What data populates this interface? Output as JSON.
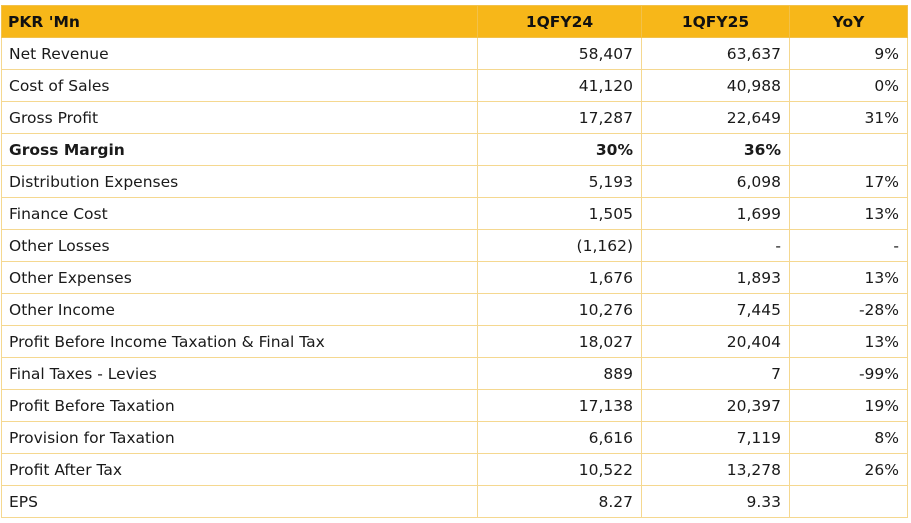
{
  "table": {
    "headers": [
      "PKR 'Mn",
      "1QFY24",
      "1QFY25",
      "YoY"
    ],
    "rows": [
      {
        "label": "Net Revenue",
        "q24": "58,407",
        "q25": "63,637",
        "yoy": "9%"
      },
      {
        "label": "Cost of Sales",
        "q24": "41,120",
        "q25": "40,988",
        "yoy": "0%"
      },
      {
        "label": "Gross Profit",
        "q24": "17,287",
        "q25": "22,649",
        "yoy": "31%"
      },
      {
        "label": "Gross Margin",
        "q24": "30%",
        "q25": "36%",
        "yoy": "",
        "bold": true
      },
      {
        "label": "Distribution Expenses",
        "q24": "5,193",
        "q25": "6,098",
        "yoy": "17%"
      },
      {
        "label": "Finance Cost",
        "q24": "1,505",
        "q25": "1,699",
        "yoy": "13%"
      },
      {
        "label": "Other Losses",
        "q24": "(1,162)",
        "q25": "-",
        "yoy": "-"
      },
      {
        "label": "Other Expenses",
        "q24": "1,676",
        "q25": "1,893",
        "yoy": "13%"
      },
      {
        "label": "Other Income",
        "q24": "10,276",
        "q25": "7,445",
        "yoy": "-28%"
      },
      {
        "label": "Profit Before Income Taxation & Final Tax",
        "q24": "18,027",
        "q25": "20,404",
        "yoy": "13%"
      },
      {
        "label": "Final Taxes - Levies",
        "q24": "889",
        "q25": "7",
        "yoy": "-99%"
      },
      {
        "label": "Profit Before Taxation",
        "q24": "17,138",
        "q25": "20,397",
        "yoy": "19%"
      },
      {
        "label": "Provision for Taxation",
        "q24": "6,616",
        "q25": "7,119",
        "yoy": "8%"
      },
      {
        "label": "Profit After Tax",
        "q24": "10,522",
        "q25": "13,278",
        "yoy": "26%"
      },
      {
        "label": "EPS",
        "q24": "8.27",
        "q25": "9.33",
        "yoy": ""
      }
    ]
  },
  "colors": {
    "header_bg": "#f7b719",
    "grid_line": "#f5d890"
  }
}
